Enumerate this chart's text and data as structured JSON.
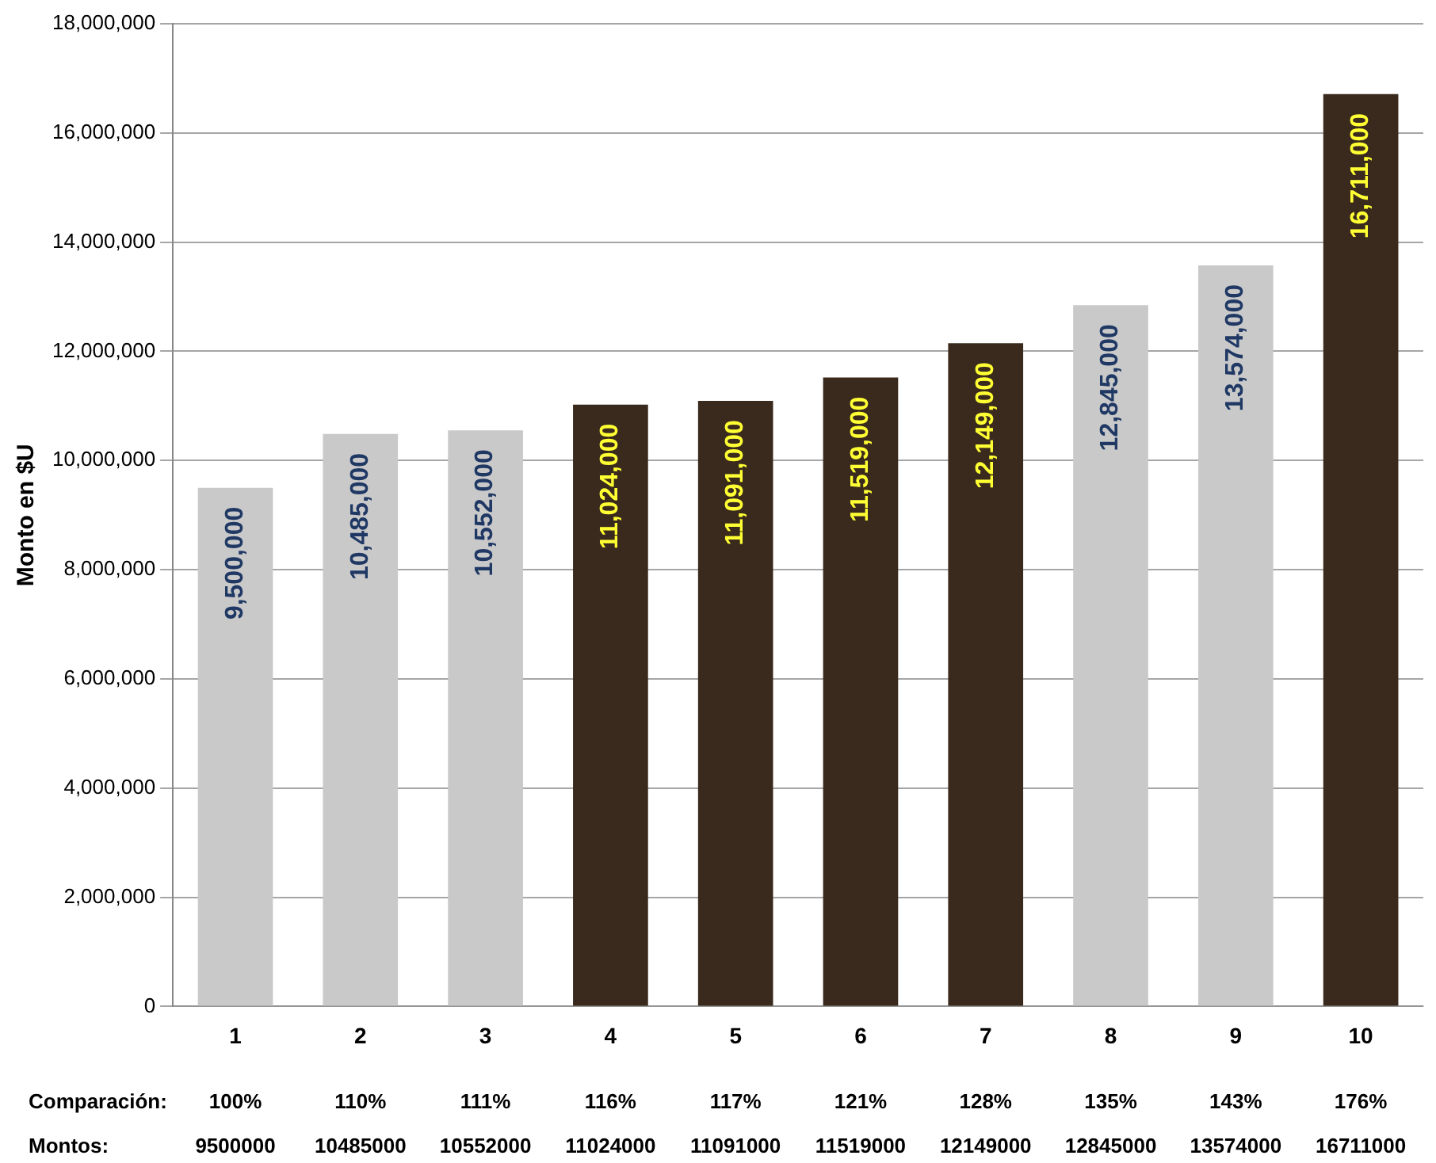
{
  "chart_data": {
    "type": "bar",
    "ylabel": "Monto en $U",
    "categories": [
      "1",
      "2",
      "3",
      "4",
      "5",
      "6",
      "7",
      "8",
      "9",
      "10"
    ],
    "values": [
      9500000,
      10485000,
      10552000,
      11024000,
      11091000,
      11519000,
      12149000,
      12845000,
      13574000,
      16711000
    ],
    "colors": [
      "#c9c9c9",
      "#c9c9c9",
      "#c9c9c9",
      "#3a2a1d",
      "#3a2a1d",
      "#3a2a1d",
      "#3a2a1d",
      "#c9c9c9",
      "#c9c9c9",
      "#3a2a1d"
    ],
    "value_labels": [
      "9,500,000",
      "10,485,000",
      "10,552,000",
      "11,024,000",
      "11,091,000",
      "11,519,000",
      "12,149,000",
      "12,845,000",
      "13,574,000",
      "16,711,000"
    ],
    "ylim": [
      0,
      18000000
    ],
    "yticks": [
      {
        "value": 0,
        "label": "0"
      },
      {
        "value": 2000000,
        "label": "2,000,000"
      },
      {
        "value": 4000000,
        "label": "4,000,000"
      },
      {
        "value": 6000000,
        "label": "6,000,000"
      },
      {
        "value": 8000000,
        "label": "8,000,000"
      },
      {
        "value": 10000000,
        "label": "10,000,000"
      },
      {
        "value": 12000000,
        "label": "12,000,000"
      },
      {
        "value": 14000000,
        "label": "14,000,000"
      },
      {
        "value": 16000000,
        "label": "16,000,000"
      },
      {
        "value": 18000000,
        "label": "18,000,000"
      }
    ],
    "grid": "y",
    "legend": false,
    "annotations": [
      "Comparación:",
      "100%",
      "110%",
      "111%",
      "116%",
      "117%",
      "121%",
      "128%",
      "135%",
      "143%",
      "176%",
      "Montos:",
      "9500000",
      "10485000",
      "10552000",
      "11024000",
      "11091000",
      "11519000",
      "12149000",
      "12845000",
      "13574000",
      "16711000"
    ]
  }
}
